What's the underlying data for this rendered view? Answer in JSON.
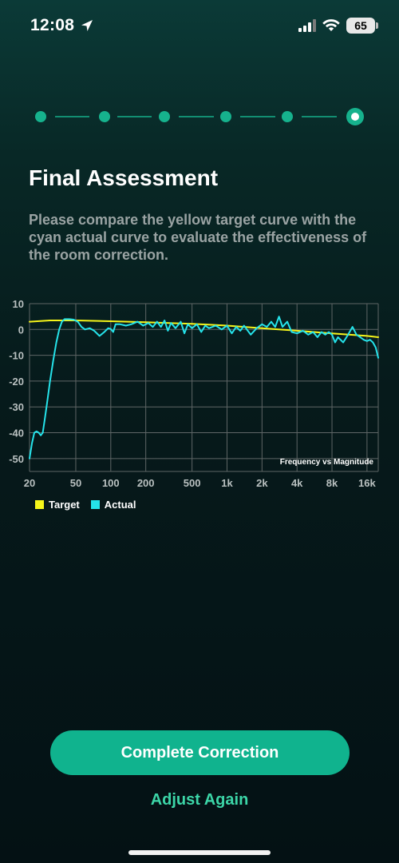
{
  "status_bar": {
    "time": "12:08",
    "battery": "65"
  },
  "stepper": {
    "total_steps": 6,
    "current_step": 6
  },
  "screen": {
    "title": "Final Assessment",
    "description": "Please compare the yellow target curve with the cyan actual curve to evaluate the effectiveness of the room correction."
  },
  "chart_data": {
    "type": "line",
    "annotation": "Frequency vs Magnitude",
    "xscale": "log",
    "xlim": [
      20,
      20000
    ],
    "ylim": [
      -55,
      10
    ],
    "grid": true,
    "yticks": [
      10,
      0,
      -10,
      -20,
      -30,
      -40,
      -50
    ],
    "xticks": [
      {
        "f": 20,
        "label": "20"
      },
      {
        "f": 50,
        "label": "50"
      },
      {
        "f": 100,
        "label": "100"
      },
      {
        "f": 200,
        "label": "200"
      },
      {
        "f": 500,
        "label": "500"
      },
      {
        "f": 1000,
        "label": "1k"
      },
      {
        "f": 2000,
        "label": "2k"
      },
      {
        "f": 4000,
        "label": "4k"
      },
      {
        "f": 8000,
        "label": "8k"
      },
      {
        "f": 16000,
        "label": "16k"
      }
    ],
    "series": [
      {
        "name": "Target",
        "color": "#f5f51a",
        "points": [
          [
            20,
            3
          ],
          [
            30,
            3.5
          ],
          [
            50,
            3.5
          ],
          [
            100,
            3.2
          ],
          [
            200,
            2.8
          ],
          [
            500,
            2.2
          ],
          [
            1000,
            1.5
          ],
          [
            2000,
            0.5
          ],
          [
            4000,
            -0.5
          ],
          [
            8000,
            -1.5
          ],
          [
            16000,
            -2.5
          ],
          [
            20000,
            -3
          ]
        ]
      },
      {
        "name": "Actual",
        "color": "#25e3ea",
        "points": [
          [
            20,
            -50
          ],
          [
            21,
            -44
          ],
          [
            22,
            -40
          ],
          [
            23,
            -39.5
          ],
          [
            24,
            -40
          ],
          [
            25,
            -41
          ],
          [
            26,
            -40
          ],
          [
            27,
            -35
          ],
          [
            28,
            -30
          ],
          [
            29,
            -25
          ],
          [
            30,
            -20
          ],
          [
            32,
            -12
          ],
          [
            34,
            -5
          ],
          [
            36,
            0
          ],
          [
            38,
            3
          ],
          [
            40,
            4
          ],
          [
            44,
            4
          ],
          [
            48,
            3.8
          ],
          [
            52,
            3
          ],
          [
            56,
            1
          ],
          [
            60,
            0
          ],
          [
            66,
            0.5
          ],
          [
            72,
            -0.5
          ],
          [
            80,
            -2.5
          ],
          [
            88,
            -1
          ],
          [
            95,
            0.5
          ],
          [
            100,
            0.2
          ],
          [
            105,
            -1
          ],
          [
            110,
            2
          ],
          [
            120,
            2
          ],
          [
            135,
            1.5
          ],
          [
            150,
            2
          ],
          [
            170,
            3
          ],
          [
            190,
            1.5
          ],
          [
            210,
            2.5
          ],
          [
            230,
            1
          ],
          [
            250,
            3
          ],
          [
            270,
            1
          ],
          [
            290,
            3.5
          ],
          [
            310,
            -0.5
          ],
          [
            330,
            2.5
          ],
          [
            360,
            0.5
          ],
          [
            400,
            3
          ],
          [
            430,
            -1.5
          ],
          [
            460,
            2
          ],
          [
            500,
            0.5
          ],
          [
            550,
            2
          ],
          [
            600,
            -1
          ],
          [
            650,
            1.5
          ],
          [
            700,
            0.5
          ],
          [
            800,
            1.5
          ],
          [
            900,
            0
          ],
          [
            1000,
            1.5
          ],
          [
            1100,
            -1.5
          ],
          [
            1200,
            1
          ],
          [
            1300,
            -0.5
          ],
          [
            1400,
            1.5
          ],
          [
            1600,
            -2
          ],
          [
            1800,
            0.5
          ],
          [
            2000,
            2
          ],
          [
            2200,
            1
          ],
          [
            2400,
            3
          ],
          [
            2600,
            1
          ],
          [
            2800,
            5
          ],
          [
            3000,
            1
          ],
          [
            3300,
            3
          ],
          [
            3600,
            -1
          ],
          [
            4000,
            -1.5
          ],
          [
            4500,
            -0.5
          ],
          [
            5000,
            -2
          ],
          [
            5500,
            -1
          ],
          [
            6000,
            -3
          ],
          [
            6500,
            -1
          ],
          [
            7000,
            -2
          ],
          [
            7500,
            -1
          ],
          [
            8000,
            -2
          ],
          [
            8500,
            -5
          ],
          [
            9000,
            -3
          ],
          [
            10000,
            -5
          ],
          [
            11000,
            -2
          ],
          [
            12000,
            1
          ],
          [
            13000,
            -2
          ],
          [
            14000,
            -3
          ],
          [
            15000,
            -4
          ],
          [
            16000,
            -4.5
          ],
          [
            17000,
            -4
          ],
          [
            18000,
            -5
          ],
          [
            19000,
            -7
          ],
          [
            20000,
            -11
          ]
        ]
      }
    ]
  },
  "actions": {
    "primary": "Complete Correction",
    "secondary": "Adjust Again"
  }
}
